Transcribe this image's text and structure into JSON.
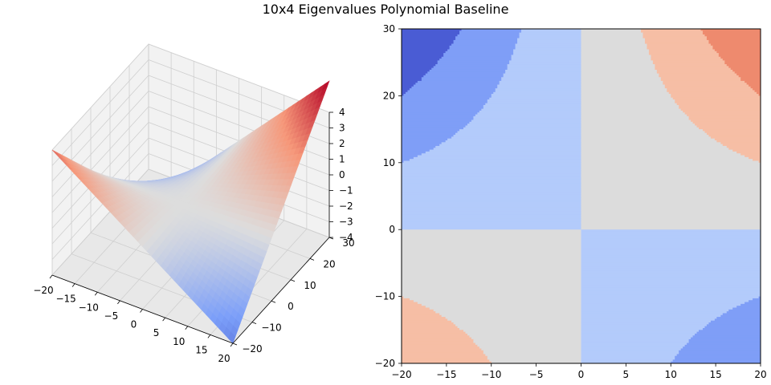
{
  "figure": {
    "title": "10x4 Eigenvalues Polynomial Baseline"
  },
  "chart_data": [
    {
      "type": "surface3d",
      "colormap": "coolwarm",
      "function": "z = x*y/100",
      "xlim": [
        -20,
        20
      ],
      "ylim": [
        -20,
        30
      ],
      "zlim": [
        -4,
        4
      ],
      "x_ticks": [
        "−20",
        "−15",
        "−10",
        "−5",
        "0",
        "5",
        "10",
        "15",
        "20"
      ],
      "y_ticks": [
        "−20",
        "−10",
        "0",
        "10",
        "20",
        "30"
      ],
      "z_ticks": [
        "−4",
        "−3",
        "−2",
        "−1",
        "0",
        "1",
        "2",
        "3",
        "4"
      ],
      "x_tick_values": [
        -20,
        -15,
        -10,
        -5,
        0,
        5,
        10,
        15,
        20
      ],
      "y_tick_values": [
        -20,
        -10,
        0,
        10,
        20,
        30
      ],
      "z_tick_values": [
        -4,
        -3,
        -2,
        -1,
        0,
        1,
        2,
        3,
        4
      ],
      "corner_values": {
        "x=-20,y=-20": 4,
        "x=20,y=-20": -4,
        "x=-20,y=30": -6,
        "x=20,y=30": 6
      },
      "grid": true
    },
    {
      "type": "contourf",
      "colormap": "coolwarm",
      "function": "z = x*y/100",
      "xlim": [
        -20,
        20
      ],
      "ylim": [
        -20,
        30
      ],
      "levels": [
        -6,
        -4,
        -2,
        0,
        2,
        4,
        6
      ],
      "level_colors": [
        "#4a5cd4",
        "#7f9ef7",
        "#b3cbfb",
        "#dcdcdc",
        "#f6bea5",
        "#ee8a6e"
      ],
      "x_ticks": [
        "−20",
        "−15",
        "−10",
        "−5",
        "0",
        "5",
        "10",
        "15",
        "20"
      ],
      "y_ticks": [
        "−20",
        "−10",
        "0",
        "10",
        "20",
        "30"
      ],
      "x_tick_values": [
        -20,
        -15,
        -10,
        -5,
        0,
        5,
        10,
        15,
        20
      ],
      "y_tick_values": [
        -20,
        -10,
        0,
        10,
        20,
        30
      ]
    }
  ]
}
